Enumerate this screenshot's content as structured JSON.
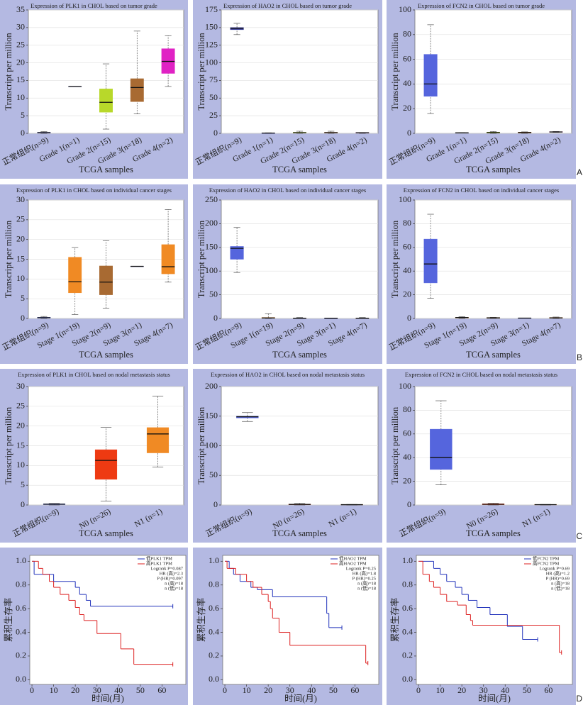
{
  "panel_labels": [
    "A",
    "B",
    "C",
    "D"
  ],
  "chart_data": [
    {
      "type": "box",
      "title": "Expression of PLK1 in CHOL based on tumor grade",
      "x_label": "TCGA samples",
      "y_label": "Transcript per million",
      "categories": [
        "正常组织(n=9)",
        "Grade 1(n=1)",
        "Grade 2(n=15)",
        "Grade 3(n=18)",
        "Grade 4(n=2)"
      ],
      "boxes": [
        [
          0,
          0.1,
          0.2,
          0.3,
          0.5
        ],
        [
          13.3,
          13.3,
          13.3,
          13.3,
          13.3
        ],
        [
          1.2,
          6,
          8.8,
          12.6,
          19.7
        ],
        [
          5.5,
          9,
          13,
          15.5,
          29
        ],
        [
          13.3,
          17,
          20.4,
          24,
          27.7
        ]
      ],
      "colors": [
        "#3b3f9a",
        "#3b3f9a",
        "#b8d82a",
        "#a86a32",
        "#e022c4"
      ],
      "ylim": [
        0,
        35
      ],
      "yticks": [
        0,
        5,
        10,
        15,
        20,
        25,
        30,
        35
      ],
      "grid": true
    },
    {
      "type": "box",
      "title": "Expression of HAO2 in CHOL based on tumor grade",
      "x_label": "TCGA samples",
      "y_label": "Transcript per million",
      "categories": [
        "正常组织(n=9)",
        "Grade 1(n=1)",
        "Grade 2(n=15)",
        "Grade 3(n=18)",
        "Grade 4(n=2)"
      ],
      "boxes": [
        [
          140,
          147,
          149,
          150,
          156
        ],
        [
          0,
          0.2,
          0.4,
          0.5,
          0.8
        ],
        [
          0,
          0.5,
          1,
          1.5,
          3
        ],
        [
          0,
          0.5,
          1,
          1.5,
          3
        ],
        [
          0,
          0.5,
          0.8,
          1,
          1.2
        ]
      ],
      "colors": [
        "#3b3f9a",
        "#3b3f9a",
        "#b8d82a",
        "#a86a32",
        "#e022c4"
      ],
      "ylim": [
        0,
        175
      ],
      "yticks": [
        0,
        25,
        50,
        75,
        100,
        125,
        150,
        175
      ],
      "grid": true
    },
    {
      "type": "box",
      "title": "Expression of FCN2 in CHOL based on tumor grade",
      "x_label": "TCGA samples",
      "y_label": "Transcript per million",
      "categories": [
        "正常组织(n=9)",
        "Grade 1(n=1)",
        "Grade 2(n=15)",
        "Grade 3(n=18)",
        "Grade 4(n=2)"
      ],
      "boxes": [
        [
          16,
          30,
          40,
          64,
          88
        ],
        [
          0.2,
          0.3,
          0.4,
          0.4,
          0.5
        ],
        [
          0,
          0.3,
          0.6,
          1,
          1.5
        ],
        [
          0,
          0.3,
          0.6,
          1,
          1.2
        ],
        [
          0.8,
          1,
          1.1,
          1.3,
          1.5
        ]
      ],
      "colors": [
        "#5565dd",
        "#3b3f9a",
        "#b8d82a",
        "#a86a32",
        "#e022c4"
      ],
      "ylim": [
        0,
        100
      ],
      "yticks": [
        0,
        20,
        40,
        60,
        80,
        100
      ],
      "grid": true
    },
    {
      "type": "box",
      "title": "Expression of PLK1 in CHOL based on individual cancer stages",
      "x_label": "TCGA samples",
      "y_label": "Transcript per million",
      "categories": [
        "正常组织(n=9)",
        "Stage 1(n=19)",
        "Stage 2(n=9)",
        "Stage 3(n=1)",
        "Stage 4(n=7)"
      ],
      "boxes": [
        [
          0,
          0.1,
          0.2,
          0.3,
          0.5
        ],
        [
          1,
          6.5,
          9.3,
          15.5,
          18
        ],
        [
          2.6,
          6,
          9.2,
          13.3,
          19.7
        ],
        [
          13.2,
          13.2,
          13.2,
          13.2,
          13.2
        ],
        [
          9.2,
          11.3,
          13.1,
          18.7,
          27.6
        ]
      ],
      "colors": [
        "#5565dd",
        "#f08a24",
        "#a86a32",
        "#3b3f9a",
        "#f08a24"
      ],
      "ylim": [
        0,
        30
      ],
      "yticks": [
        0,
        5,
        10,
        15,
        20,
        25,
        30
      ],
      "grid": true
    },
    {
      "type": "box",
      "title": "Expression of HAO2 in CHOL based on individual cancer stages",
      "x_label": "TCGA samples",
      "y_label": "Transcript per million",
      "categories": [
        "正常组织(n=9)",
        "Stage 1(n=19)",
        "Stage 2(n=9)",
        "Stage 3(n=1)",
        "Stage 4(n=7)"
      ],
      "boxes": [
        [
          97,
          125,
          148,
          152,
          192
        ],
        [
          0,
          0.5,
          1,
          2,
          10
        ],
        [
          0,
          0.3,
          0.5,
          1,
          2
        ],
        [
          0.5,
          0.5,
          0.5,
          0.5,
          0.5
        ],
        [
          0,
          0.3,
          0.5,
          1,
          2
        ]
      ],
      "colors": [
        "#5565dd",
        "#f08a24",
        "#a86a32",
        "#3b3f9a",
        "#f08a24"
      ],
      "ylim": [
        0,
        250
      ],
      "yticks": [
        0,
        50,
        100,
        150,
        200,
        250
      ],
      "grid": true
    },
    {
      "type": "box",
      "title": "Expression of FCN2 in CHOL based on individual cancer stages",
      "x_label": "TCGA samples",
      "y_label": "Transcript per million",
      "categories": [
        "正常组织(n=9)",
        "Stage 1(n=19)",
        "Stage 2(n=9)",
        "Stage 3(n=1)",
        "Stage 4(n=7)"
      ],
      "boxes": [
        [
          17,
          30,
          46,
          67,
          88
        ],
        [
          0,
          0.5,
          0.8,
          1,
          1.5
        ],
        [
          0,
          0.2,
          0.5,
          0.8,
          1
        ],
        [
          0.3,
          0.3,
          0.3,
          0.3,
          0.3
        ],
        [
          0,
          0.3,
          0.5,
          0.8,
          1.2
        ]
      ],
      "colors": [
        "#5565dd",
        "#f08a24",
        "#a86a32",
        "#3b3f9a",
        "#f08a24"
      ],
      "ylim": [
        0,
        100
      ],
      "yticks": [
        0,
        20,
        40,
        60,
        80,
        100
      ],
      "grid": true
    },
    {
      "type": "box",
      "title": "Expression of PLK1 in CHOL based on nodal metastasis status",
      "x_label": "TCGA samples",
      "y_label": "Transcript per million",
      "categories": [
        "正常组织(n=9)",
        "N0 (n=26)",
        "N1 (n=1)"
      ],
      "boxes": [
        [
          0,
          0.1,
          0.2,
          0.3,
          0.4
        ],
        [
          1,
          6.5,
          11.3,
          14,
          19.7
        ],
        [
          9.6,
          13.2,
          18,
          19.6,
          27.6
        ]
      ],
      "colors": [
        "#5565dd",
        "#ee3a12",
        "#f08a24"
      ],
      "ylim": [
        0,
        30
      ],
      "yticks": [
        0,
        5,
        10,
        15,
        20,
        25,
        30
      ],
      "grid": true
    },
    {
      "type": "box",
      "title": "Expression of HAO2 in CHOL based on nodal metastasis status",
      "x_label": "TCGA samples",
      "y_label": "Transcript per million",
      "categories": [
        "正常组织(n=9)",
        "N0 (n=26)",
        "N1 (n=1)"
      ],
      "boxes": [
        [
          141,
          147,
          149,
          150,
          156
        ],
        [
          0,
          0.5,
          1,
          1.5,
          3
        ],
        [
          0,
          0.3,
          0.5,
          0.8,
          1
        ]
      ],
      "colors": [
        "#5565dd",
        "#ee3a12",
        "#f08a24"
      ],
      "ylim": [
        0,
        200
      ],
      "yticks": [
        0,
        50,
        100,
        150,
        200
      ],
      "grid": true
    },
    {
      "type": "box",
      "title": "Expression of FCN2  in CHOL based on nodal metastasis status",
      "x_label": "TCGA samples",
      "y_label": "Transcript per million",
      "categories": [
        "正常组织(n=9)",
        "N0 (n=26)",
        "N1 (n=1)"
      ],
      "boxes": [
        [
          17,
          30,
          40,
          64,
          88
        ],
        [
          0,
          0.3,
          0.6,
          1,
          1.5
        ],
        [
          0,
          0.2,
          0.3,
          0.4,
          0.5
        ]
      ],
      "colors": [
        "#5565dd",
        "#ee3a12",
        "#f08a24"
      ],
      "ylim": [
        0,
        100
      ],
      "yticks": [
        0,
        20,
        40,
        60,
        80,
        100
      ],
      "grid": true
    },
    {
      "type": "km",
      "x_label": "时间(月)",
      "y_label": "累积生存率",
      "xlim": [
        -1,
        71
      ],
      "xticks": [
        0,
        10,
        20,
        30,
        40,
        50,
        60
      ],
      "ylim": [
        -0.04,
        1.05
      ],
      "yticks": [
        {
          "value": 0,
          "label": "0.0"
        },
        0.2,
        0.4,
        0.6,
        0.8,
        {
          "value": 1,
          "label": "1.0"
        }
      ],
      "grid": false,
      "legend": "upper right",
      "series": [
        {
          "name": "低PLK1 TPM",
          "color": "#2233bb",
          "x": [
            0,
            1,
            10,
            20,
            22,
            25,
            27,
            65
          ],
          "values": [
            1.0,
            0.89,
            0.83,
            0.78,
            0.72,
            0.67,
            0.62,
            0.62
          ]
        },
        {
          "name": "高PLK1 TPM",
          "color": "#dd2222",
          "x": [
            0,
            3,
            5,
            8,
            10,
            13,
            17,
            20,
            22,
            24,
            30,
            41,
            47,
            65
          ],
          "values": [
            1.0,
            0.94,
            0.89,
            0.83,
            0.78,
            0.72,
            0.67,
            0.61,
            0.55,
            0.5,
            0.39,
            0.26,
            0.13,
            0.13
          ]
        }
      ],
      "annotations": [
        "Logrank P=0.087",
        "HR (高)=2.3",
        "P (HR)=0.097",
        "n (高)=18",
        "n (低)=18"
      ]
    },
    {
      "type": "km",
      "x_label": "时间(月)",
      "y_label": "累积生存率",
      "xlim": [
        -1,
        71
      ],
      "xticks": [
        0,
        10,
        20,
        30,
        40,
        50,
        60
      ],
      "ylim": [
        -0.04,
        1.05
      ],
      "yticks": [
        {
          "value": 0,
          "label": "0.0"
        },
        0.2,
        0.4,
        0.6,
        0.8,
        {
          "value": 1,
          "label": "1.0"
        }
      ],
      "grid": false,
      "legend": "upper right",
      "series": [
        {
          "name": "低HAO2 TPM",
          "color": "#2233bb",
          "x": [
            0,
            2,
            4,
            7,
            12,
            15,
            22,
            47,
            48,
            54
          ],
          "values": [
            1.0,
            0.94,
            0.89,
            0.83,
            0.78,
            0.76,
            0.7,
            0.56,
            0.44,
            0.44
          ]
        },
        {
          "name": "高HAO2 TPM",
          "color": "#dd2222",
          "x": [
            0,
            1,
            5,
            10,
            13,
            17,
            20,
            21,
            22,
            25,
            30,
            65,
            66
          ],
          "values": [
            1.0,
            0.94,
            0.89,
            0.83,
            0.78,
            0.72,
            0.66,
            0.6,
            0.52,
            0.4,
            0.29,
            0.14,
            0.14
          ]
        }
      ],
      "annotations": [
        "Logrank P=0.25",
        "HR (高)=1.8",
        "P (HR)=0.25",
        "n (高)=18",
        "n (低)=18"
      ]
    },
    {
      "type": "km",
      "x_label": "时间(月)",
      "y_label": "累积生存率",
      "xlim": [
        -1,
        71
      ],
      "xticks": [
        0,
        10,
        20,
        30,
        40,
        50,
        60
      ],
      "ylim": [
        -0.04,
        1.05
      ],
      "yticks": [
        {
          "value": 0,
          "label": "0.0"
        },
        0.2,
        0.4,
        0.6,
        0.8,
        {
          "value": 1,
          "label": "1.0"
        }
      ],
      "grid": false,
      "legend": "upper right",
      "series": [
        {
          "name": "低FCN2 TPM",
          "color": "#2233bb",
          "x": [
            0,
            7,
            10,
            13,
            17,
            20,
            23,
            27,
            33,
            41,
            48,
            55
          ],
          "values": [
            1.0,
            0.94,
            0.89,
            0.83,
            0.78,
            0.72,
            0.67,
            0.61,
            0.55,
            0.45,
            0.34,
            0.34
          ]
        },
        {
          "name": "高FCN2 TPM",
          "color": "#dd2222",
          "x": [
            0,
            2,
            5,
            7,
            10,
            13,
            18,
            22,
            24,
            25,
            65,
            66
          ],
          "values": [
            1.0,
            0.89,
            0.83,
            0.78,
            0.72,
            0.66,
            0.63,
            0.55,
            0.5,
            0.46,
            0.23,
            0.23
          ]
        }
      ],
      "annotations": [
        "Logrank P=0.69",
        "HR (高)=1.2",
        "P (HR)=0.69",
        "n (高)=18",
        "n (低)=18"
      ]
    }
  ]
}
